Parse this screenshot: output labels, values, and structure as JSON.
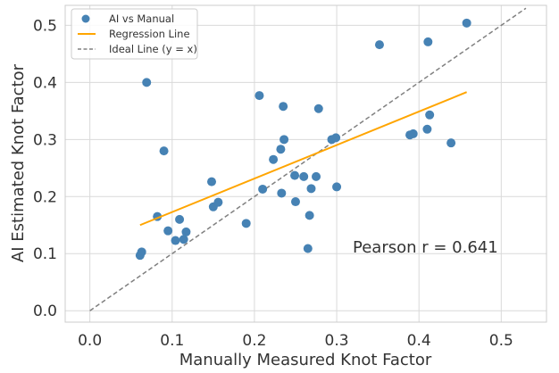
{
  "chart_data": {
    "type": "scatter",
    "xlabel": "Manually Measured Knot Factor",
    "ylabel": "AI Estimated Knot Factor",
    "xlim": [
      -0.03,
      0.555
    ],
    "ylim": [
      -0.02,
      0.535
    ],
    "xticks": [
      0.0,
      0.1,
      0.2,
      0.3,
      0.4,
      0.5
    ],
    "xtick_labels": [
      "0.0",
      "0.1",
      "0.2",
      "0.3",
      "0.4",
      "0.5"
    ],
    "yticks": [
      0.0,
      0.1,
      0.2,
      0.3,
      0.4,
      0.5
    ],
    "ytick_labels": [
      "0.0",
      "0.1",
      "0.2",
      "0.3",
      "0.4",
      "0.5"
    ],
    "grid": true,
    "legend_position": "top-left",
    "annotation": "Pearson r = 0.641",
    "series": [
      {
        "name": "AI vs Manual",
        "kind": "scatter",
        "color": "#4682b4",
        "points": [
          [
            0.061,
            0.097
          ],
          [
            0.063,
            0.103
          ],
          [
            0.069,
            0.4
          ],
          [
            0.082,
            0.165
          ],
          [
            0.09,
            0.28
          ],
          [
            0.095,
            0.14
          ],
          [
            0.104,
            0.123
          ],
          [
            0.109,
            0.16
          ],
          [
            0.114,
            0.125
          ],
          [
            0.117,
            0.138
          ],
          [
            0.148,
            0.226
          ],
          [
            0.15,
            0.182
          ],
          [
            0.156,
            0.19
          ],
          [
            0.19,
            0.153
          ],
          [
            0.206,
            0.377
          ],
          [
            0.21,
            0.213
          ],
          [
            0.223,
            0.265
          ],
          [
            0.232,
            0.283
          ],
          [
            0.233,
            0.206
          ],
          [
            0.235,
            0.358
          ],
          [
            0.236,
            0.3
          ],
          [
            0.249,
            0.237
          ],
          [
            0.25,
            0.191
          ],
          [
            0.26,
            0.235
          ],
          [
            0.265,
            0.109
          ],
          [
            0.267,
            0.167
          ],
          [
            0.269,
            0.214
          ],
          [
            0.275,
            0.235
          ],
          [
            0.278,
            0.354
          ],
          [
            0.294,
            0.3
          ],
          [
            0.299,
            0.303
          ],
          [
            0.3,
            0.217
          ],
          [
            0.352,
            0.466
          ],
          [
            0.389,
            0.308
          ],
          [
            0.393,
            0.31
          ],
          [
            0.41,
            0.318
          ],
          [
            0.411,
            0.471
          ],
          [
            0.413,
            0.343
          ],
          [
            0.439,
            0.294
          ],
          [
            0.458,
            0.504
          ]
        ]
      },
      {
        "name": "Regression Line",
        "kind": "line",
        "color": "#ffa500",
        "points": [
          [
            0.061,
            0.15
          ],
          [
            0.458,
            0.383
          ]
        ]
      },
      {
        "name": "Ideal Line (y = x)",
        "kind": "dashed-line",
        "color": "#808080",
        "points": [
          [
            0.0,
            0.0
          ],
          [
            0.53,
            0.53
          ]
        ]
      }
    ]
  }
}
